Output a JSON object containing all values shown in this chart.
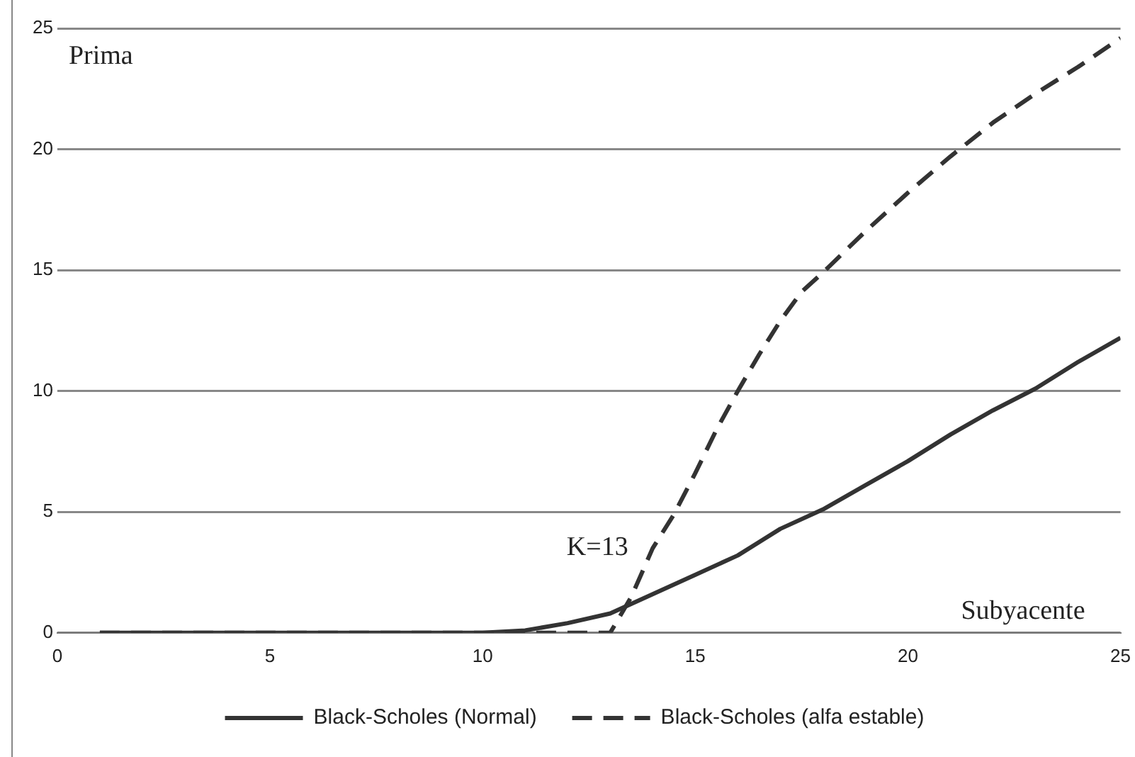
{
  "chart_data": {
    "type": "line",
    "xlabel": "Subyacente",
    "ylabel": "Prima",
    "annotations": [
      "K=13"
    ],
    "xlim": [
      0,
      25
    ],
    "xticks": [
      0,
      5,
      10,
      15,
      20,
      25
    ],
    "ylim": [
      0,
      25
    ],
    "yticks": [
      0,
      5,
      10,
      15,
      20,
      25
    ],
    "grid": "y",
    "legend": "bottom",
    "marker": "none",
    "series": [
      {
        "name": "Black-Scholes (Normal)",
        "color": "#333333",
        "line_style": "solid",
        "x": [
          1,
          5,
          10,
          11,
          12,
          13,
          14,
          15,
          16,
          17,
          18,
          19,
          20,
          21,
          22,
          23,
          24,
          25
        ],
        "values": [
          0,
          0,
          0,
          0.1,
          0.4,
          0.8,
          1.6,
          2.4,
          3.2,
          4.3,
          5.1,
          6.1,
          7.1,
          8.2,
          9.2,
          10.1,
          11.2,
          12.2
        ]
      },
      {
        "name": "Black-Scholes (alfa estable)",
        "color": "#333333",
        "line_style": "dashed",
        "x": [
          1,
          5,
          10,
          13,
          13.5,
          14,
          14.5,
          15,
          15.5,
          16,
          16.5,
          17,
          17.5,
          18,
          19,
          20,
          21,
          22,
          23,
          24,
          25
        ],
        "values": [
          0,
          0,
          0,
          0,
          1.5,
          3.5,
          4.9,
          6.6,
          8.4,
          10,
          11.5,
          12.9,
          14.1,
          14.9,
          16.6,
          18.2,
          19.7,
          21.1,
          22.3,
          23.4,
          24.6
        ]
      }
    ]
  }
}
